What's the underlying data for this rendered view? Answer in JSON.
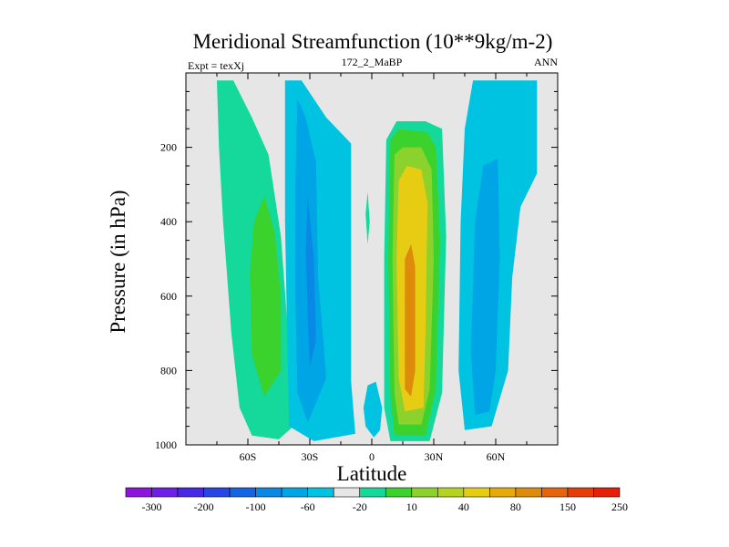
{
  "chart_data": {
    "type": "contour",
    "title": "Meridional Streamfunction (10**9kg/m-2)",
    "left_string": "Expt = texXj",
    "center_string": "172_2_MaBP",
    "right_string": "ANN",
    "xlabel": "Latitude",
    "ylabel": "Pressure (in hPa)",
    "xlim": [
      -90,
      90
    ],
    "ylim": [
      1000,
      0
    ],
    "x_ticks": [
      {
        "value": -60,
        "label": "60S"
      },
      {
        "value": -30,
        "label": "30S"
      },
      {
        "value": 0,
        "label": "0"
      },
      {
        "value": 30,
        "label": "30N"
      },
      {
        "value": 60,
        "label": "60N"
      }
    ],
    "y_ticks": [
      {
        "value": 200,
        "label": "200"
      },
      {
        "value": 400,
        "label": "400"
      },
      {
        "value": 600,
        "label": "600"
      },
      {
        "value": 800,
        "label": "800"
      },
      {
        "value": 1000,
        "label": "1000"
      }
    ],
    "background_color": "#e6e6e6",
    "cells": [
      {
        "name": "cell-60s-positive",
        "min": 10,
        "max": 40,
        "levels": [
          {
            "level": 10,
            "color": "#14d99b",
            "path": [
              [
                -75,
                20
              ],
              [
                -67,
                20
              ],
              [
                -58,
                120
              ],
              [
                -50,
                220
              ],
              [
                -44,
                440
              ],
              [
                -40,
                740
              ],
              [
                -38,
                950
              ],
              [
                -45,
                985
              ],
              [
                -58,
                975
              ],
              [
                -64,
                900
              ],
              [
                -68,
                700
              ],
              [
                -72,
                400
              ],
              [
                -74,
                200
              ]
            ]
          },
          {
            "level": 40,
            "color": "#3cd22d",
            "path": [
              [
                -52,
                330
              ],
              [
                -47,
                430
              ],
              [
                -44,
                600
              ],
              [
                -44,
                800
              ],
              [
                -52,
                870
              ],
              [
                -58,
                760
              ],
              [
                -59,
                540
              ],
              [
                -57,
                400
              ]
            ]
          }
        ]
      },
      {
        "name": "cell-30s-negative",
        "min": -60,
        "max": -10,
        "levels": [
          {
            "level": -10,
            "color": "#00c3e1",
            "path": [
              [
                -42,
                20
              ],
              [
                -34,
                20
              ],
              [
                -22,
                120
              ],
              [
                -10,
                190
              ],
              [
                -10,
                830
              ],
              [
                -8,
                970
              ],
              [
                -28,
                990
              ],
              [
                -40,
                950
              ],
              [
                -41,
                700
              ],
              [
                -42,
                400
              ]
            ]
          },
          {
            "level": -20,
            "color": "#00a5e6",
            "path": [
              [
                -36,
                70
              ],
              [
                -32,
                120
              ],
              [
                -27,
                240
              ],
              [
                -26,
                550
              ],
              [
                -22,
                820
              ],
              [
                -31,
                940
              ],
              [
                -36,
                860
              ],
              [
                -37,
                600
              ],
              [
                -37,
                300
              ]
            ]
          },
          {
            "level": -60,
            "color": "#0a88e6",
            "path": [
              [
                -31,
                330
              ],
              [
                -28,
                500
              ],
              [
                -27,
                720
              ],
              [
                -30,
                790
              ],
              [
                -31,
                650
              ],
              [
                -32,
                480
              ]
            ]
          }
        ]
      },
      {
        "name": "cell-hadley-nh",
        "min": 10,
        "max": 250,
        "levels": [
          {
            "level": 10,
            "color": "#14d99b",
            "path": [
              [
                7,
                180
              ],
              [
                12,
                130
              ],
              [
                26,
                130
              ],
              [
                34,
                150
              ],
              [
                36,
                440
              ],
              [
                34,
                860
              ],
              [
                28,
                990
              ],
              [
                9,
                990
              ],
              [
                6,
                900
              ],
              [
                6,
                500
              ]
            ]
          },
          {
            "level": 40,
            "color": "#3cd22d",
            "path": [
              [
                9,
                180
              ],
              [
                13,
                150
              ],
              [
                27,
                160
              ],
              [
                31,
                200
              ],
              [
                33,
                450
              ],
              [
                31,
                850
              ],
              [
                26,
                975
              ],
              [
                11,
                975
              ],
              [
                9,
                860
              ],
              [
                8,
                500
              ]
            ]
          },
          {
            "level": 80,
            "color": "#8cd22d",
            "path": [
              [
                11,
                220
              ],
              [
                15,
                200
              ],
              [
                24,
                200
              ],
              [
                29,
                260
              ],
              [
                30,
                500
              ],
              [
                28,
                850
              ],
              [
                24,
                945
              ],
              [
                13,
                945
              ],
              [
                11,
                860
              ],
              [
                10,
                500
              ]
            ]
          },
          {
            "level": 150,
            "color": "#e6cd14",
            "path": [
              [
                13,
                290
              ],
              [
                17,
                250
              ],
              [
                24,
                260
              ],
              [
                27,
                350
              ],
              [
                26,
                700
              ],
              [
                25,
                900
              ],
              [
                16,
                910
              ],
              [
                13,
                820
              ],
              [
                12,
                500
              ]
            ]
          },
          {
            "level": 250,
            "color": "#dc8c0a",
            "path": [
              [
                16,
                500
              ],
              [
                19,
                460
              ],
              [
                21,
                520
              ],
              [
                21,
                800
              ],
              [
                19,
                870
              ],
              [
                16,
                850
              ],
              [
                16,
                700
              ]
            ]
          }
        ]
      },
      {
        "name": "cell-60n-negative",
        "min": -60,
        "max": -10,
        "levels": [
          {
            "level": -10,
            "color": "#00c3e1",
            "path": [
              [
                49,
                20
              ],
              [
                80,
                20
              ],
              [
                80,
                270
              ],
              [
                72,
                360
              ],
              [
                68,
                550
              ],
              [
                66,
                800
              ],
              [
                58,
                950
              ],
              [
                45,
                960
              ],
              [
                42,
                800
              ],
              [
                43,
                400
              ],
              [
                45,
                150
              ]
            ]
          },
          {
            "level": -20,
            "color": "#00a5e6",
            "path": [
              [
                50,
                400
              ],
              [
                54,
                250
              ],
              [
                61,
                230
              ],
              [
                62,
                500
              ],
              [
                60,
                800
              ],
              [
                57,
                910
              ],
              [
                50,
                920
              ],
              [
                48,
                750
              ]
            ]
          }
        ]
      },
      {
        "name": "cell-tropics-small",
        "min": -20,
        "max": 10,
        "levels": [
          {
            "level": 10,
            "color": "#14d99b",
            "path": [
              [
                -3,
                380
              ],
              [
                -2,
                320
              ],
              [
                -1,
                400
              ],
              [
                -2,
                460
              ]
            ]
          },
          {
            "level": -10,
            "color": "#00c3e1",
            "path": [
              [
                -2,
                840
              ],
              [
                2,
                830
              ],
              [
                5,
                900
              ],
              [
                4,
                960
              ],
              [
                1,
                980
              ],
              [
                -3,
                950
              ],
              [
                -4,
                900
              ]
            ]
          }
        ]
      }
    ],
    "colorbar": {
      "labels": [
        "-300",
        "-200",
        "-100",
        "-60",
        "-20",
        "10",
        "40",
        "80",
        "150",
        "250"
      ],
      "colors": [
        "#8c14dc",
        "#6e1ee6",
        "#4628e6",
        "#2846e6",
        "#1464e6",
        "#0a88e6",
        "#00a5e6",
        "#00c3e1",
        "#e6e6e6",
        "#14d99b",
        "#3cd22d",
        "#8cd22d",
        "#b4d21e",
        "#e6cd14",
        "#e6aa0a",
        "#dc8c0a",
        "#e6640a",
        "#e63c0a",
        "#e61e0a"
      ]
    }
  }
}
